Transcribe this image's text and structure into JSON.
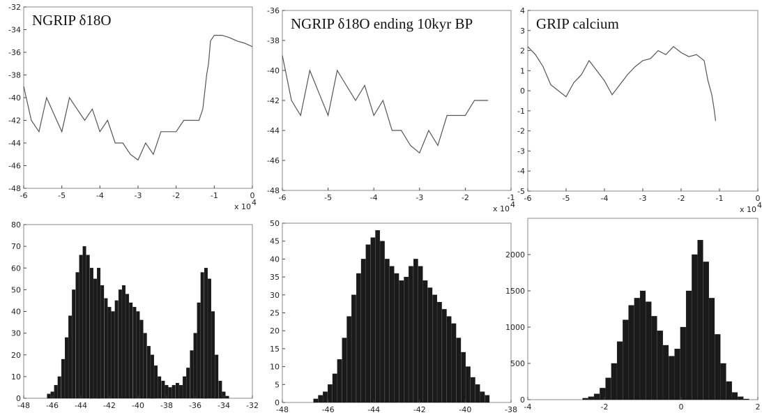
{
  "chart_data": [
    {
      "type": "line",
      "title": "NGRIP δ18O",
      "xlim": [
        -60000,
        0
      ],
      "ylim": [
        -48,
        -32
      ],
      "x_ticks": [
        "-6",
        "-5",
        "-4",
        "-3",
        "-2",
        "-1",
        "0"
      ],
      "y_ticks": [
        "-48",
        "-46",
        "-44",
        "-42",
        "-40",
        "-38",
        "-36",
        "-34",
        "-32"
      ],
      "x_multiplier": "x 10",
      "x_multiplier_exp": "4",
      "color": "#555555",
      "x": [
        -60000,
        -58000,
        -56000,
        -54000,
        -52000,
        -50000,
        -48000,
        -46000,
        -44000,
        -42000,
        -40000,
        -38000,
        -36000,
        -34000,
        -32000,
        -30000,
        -28000,
        -26000,
        -24000,
        -22000,
        -20000,
        -18000,
        -16000,
        -14000,
        -13000,
        -12000,
        -11500,
        -11000,
        -10000,
        -8000,
        -6000,
        -4000,
        -2000,
        0
      ],
      "y": [
        -39,
        -42,
        -43,
        -40,
        -41.5,
        -43,
        -40,
        -41,
        -42,
        -41,
        -43,
        -42,
        -44,
        -44,
        -45,
        -45.5,
        -44,
        -45,
        -43,
        -43,
        -43,
        -42,
        -42,
        -42,
        -41,
        -38,
        -37,
        -35,
        -34.5,
        -34.5,
        -34.7,
        -35,
        -35.2,
        -35.5
      ]
    },
    {
      "type": "line",
      "title": "NGRIP δ18O ending 10kyr BP",
      "xlim": [
        -60000,
        -10000
      ],
      "ylim": [
        -48,
        -36
      ],
      "x_ticks": [
        "-6",
        "-5",
        "-4",
        "-3",
        "-2",
        "-1"
      ],
      "y_ticks": [
        "-48",
        "-46",
        "-44",
        "-42",
        "-40",
        "-38",
        "-36"
      ],
      "x_multiplier": "x 10",
      "x_multiplier_exp": "4",
      "color": "#555555",
      "x": [
        -60000,
        -58000,
        -56000,
        -54000,
        -52000,
        -50000,
        -48000,
        -46000,
        -44000,
        -42000,
        -40000,
        -38000,
        -36000,
        -34000,
        -32000,
        -30000,
        -28000,
        -26000,
        -24000,
        -22000,
        -20000,
        -18000,
        -16000,
        -15000
      ],
      "y": [
        -39,
        -42,
        -43,
        -40,
        -41.5,
        -43,
        -40,
        -41,
        -42,
        -41,
        -43,
        -42,
        -44,
        -44,
        -45,
        -45.5,
        -44,
        -45,
        -43,
        -43,
        -43,
        -42,
        -42,
        -42
      ]
    },
    {
      "type": "line",
      "title": "GRIP calcium",
      "xlim": [
        -60000,
        0
      ],
      "ylim": [
        -5,
        4
      ],
      "x_ticks": [
        "-6",
        "-5",
        "-4",
        "-3",
        "-2",
        "-1",
        "0"
      ],
      "y_ticks": [
        "-5",
        "-4",
        "-3",
        "-2",
        "-1",
        "0",
        "1",
        "2",
        "3",
        "4"
      ],
      "x_multiplier": "x 10",
      "x_multiplier_exp": "4",
      "color": "#555555",
      "x": [
        -60000,
        -58000,
        -56000,
        -54000,
        -52000,
        -50000,
        -48000,
        -46000,
        -44000,
        -42000,
        -40000,
        -38000,
        -36000,
        -34000,
        -32000,
        -30000,
        -28000,
        -26000,
        -24000,
        -22000,
        -20000,
        -18000,
        -16000,
        -14000,
        -13000,
        -12000,
        -11500,
        -11000
      ],
      "y": [
        2.2,
        1.8,
        1.2,
        0.3,
        0,
        -0.3,
        0.4,
        0.8,
        1.5,
        1.0,
        0.5,
        -0.2,
        0.3,
        0.8,
        1.2,
        1.5,
        1.6,
        2.0,
        1.8,
        2.2,
        1.9,
        1.7,
        1.8,
        1.5,
        0.5,
        -0.2,
        -0.8,
        -1.5
      ]
    },
    {
      "type": "bar",
      "title": "",
      "xlim": [
        -48,
        -32
      ],
      "ylim": [
        0,
        80
      ],
      "x_ticks": [
        "-48",
        "-46",
        "-44",
        "-42",
        "-40",
        "-38",
        "-36",
        "-34",
        "-32"
      ],
      "y_ticks": [
        "0",
        "10",
        "20",
        "30",
        "40",
        "50",
        "60",
        "70",
        "80"
      ],
      "x": [
        -46.25,
        -46.0,
        -45.75,
        -45.5,
        -45.25,
        -45.0,
        -44.75,
        -44.5,
        -44.25,
        -44.0,
        -43.75,
        -43.5,
        -43.25,
        -43.0,
        -42.75,
        -42.5,
        -42.25,
        -42.0,
        -41.75,
        -41.5,
        -41.25,
        -41.0,
        -40.75,
        -40.5,
        -40.25,
        -40.0,
        -39.75,
        -39.5,
        -39.25,
        -39.0,
        -38.75,
        -38.5,
        -38.25,
        -38.0,
        -37.75,
        -37.5,
        -37.25,
        -37.0,
        -36.75,
        -36.5,
        -36.25,
        -36.0,
        -35.75,
        -35.5,
        -35.25,
        -35.0,
        -34.75,
        -34.5,
        -34.25,
        -34.0,
        -33.75
      ],
      "values": [
        2,
        3,
        6,
        10,
        18,
        28,
        38,
        50,
        58,
        66,
        70,
        66,
        60,
        55,
        60,
        52,
        46,
        42,
        40,
        45,
        50,
        52,
        48,
        44,
        42,
        40,
        36,
        30,
        24,
        20,
        15,
        10,
        8,
        6,
        5,
        6,
        7,
        6,
        10,
        14,
        22,
        30,
        44,
        58,
        60,
        55,
        40,
        20,
        8,
        3,
        1
      ]
    },
    {
      "type": "bar",
      "title": "",
      "xlim": [
        -48,
        -36
      ],
      "ylim": [
        0,
        50
      ],
      "x_ticks": [
        "-48",
        "-46",
        "-44",
        "-42",
        "-40",
        "-38"
      ],
      "y_ticks": [
        "0",
        "5",
        "10",
        "15",
        "20",
        "25",
        "30",
        "35",
        "40",
        "45",
        "50"
      ],
      "x": [
        -46.25,
        -46.0,
        -45.75,
        -45.5,
        -45.25,
        -45.0,
        -44.75,
        -44.5,
        -44.25,
        -44.0,
        -43.75,
        -43.5,
        -43.25,
        -43.0,
        -42.75,
        -42.5,
        -42.25,
        -42.0,
        -41.75,
        -41.5,
        -41.25,
        -41.0,
        -40.75,
        -40.5,
        -40.25,
        -40.0,
        -39.75,
        -39.5,
        -39.25,
        -39.0,
        -38.75,
        -38.5,
        -38.25,
        -38.0,
        -37.75,
        -37.5,
        -37.25
      ],
      "values": [
        1,
        2,
        3,
        5,
        8,
        12,
        18,
        24,
        30,
        36,
        40,
        44,
        46,
        48,
        45,
        40,
        38,
        36,
        34,
        35,
        38,
        40,
        38,
        34,
        32,
        30,
        28,
        26,
        24,
        22,
        18,
        14,
        10,
        7,
        5,
        3,
        2
      ]
    },
    {
      "type": "bar",
      "title": "",
      "xlim": [
        -4,
        4
      ],
      "ylim": [
        0,
        2500
      ],
      "x_ticks": [
        "-4",
        "-2",
        "0",
        "2"
      ],
      "y_ticks": [
        "0",
        "500",
        "1000",
        "1500",
        "2000"
      ],
      "x": [
        -2.0,
        -1.8,
        -1.6,
        -1.4,
        -1.2,
        -1.0,
        -0.8,
        -0.6,
        -0.4,
        -0.2,
        0.0,
        0.2,
        0.4,
        0.6,
        0.8,
        1.0,
        1.2,
        1.4,
        1.6,
        1.8,
        2.0,
        2.2,
        2.4,
        2.6,
        2.8,
        3.0,
        3.2,
        3.4,
        3.6
      ],
      "values": [
        20,
        40,
        80,
        160,
        300,
        500,
        800,
        1100,
        1300,
        1400,
        1500,
        1350,
        1150,
        950,
        750,
        600,
        700,
        1000,
        1500,
        2000,
        2200,
        1900,
        1400,
        900,
        500,
        250,
        100,
        40,
        10
      ]
    }
  ]
}
